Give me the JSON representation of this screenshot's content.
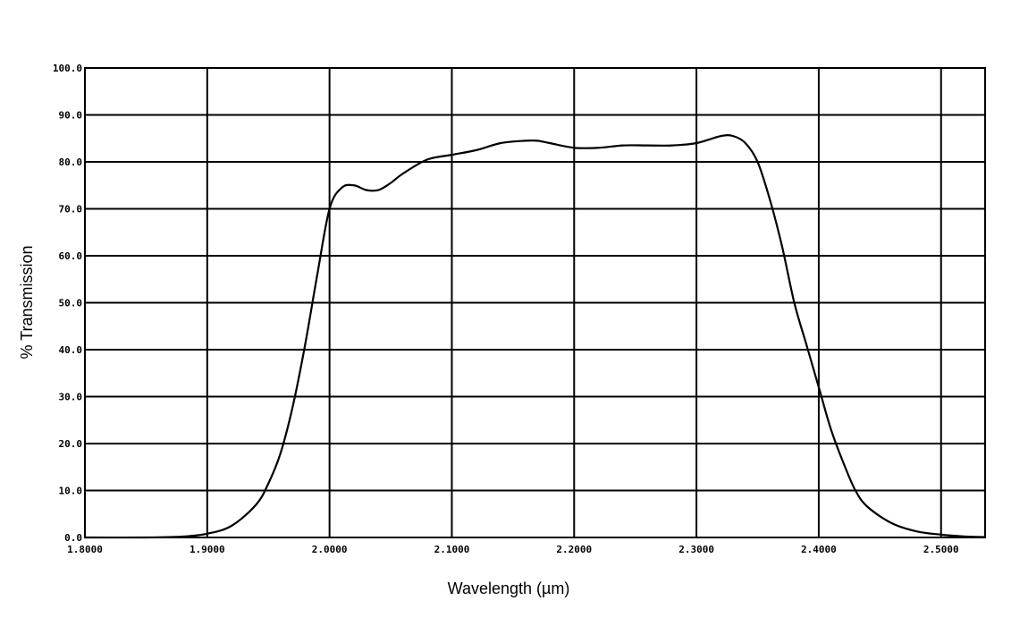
{
  "chart_data": {
    "type": "line",
    "title": "",
    "xlabel": "Wavelength (µm)",
    "ylabel": "% Transmission",
    "xlim": [
      1.8,
      2.536
    ],
    "ylim": [
      0,
      100
    ],
    "grid": true,
    "x_ticks": [
      {
        "value": 1.8,
        "label": "1.8000"
      },
      {
        "value": 1.9,
        "label": "1.9000"
      },
      {
        "value": 2.0,
        "label": "2.0000"
      },
      {
        "value": 2.1,
        "label": "2.1000"
      },
      {
        "value": 2.2,
        "label": "2.2000"
      },
      {
        "value": 2.3,
        "label": "2.3000"
      },
      {
        "value": 2.4,
        "label": "2.4000"
      },
      {
        "value": 2.5,
        "label": "2.5000"
      }
    ],
    "y_ticks": [
      {
        "value": 0,
        "label": "0.0"
      },
      {
        "value": 10,
        "label": "10.0"
      },
      {
        "value": 20,
        "label": "20.0"
      },
      {
        "value": 30,
        "label": "30.0"
      },
      {
        "value": 40,
        "label": "40.0"
      },
      {
        "value": 50,
        "label": "50.0"
      },
      {
        "value": 60,
        "label": "60.0"
      },
      {
        "value": 70,
        "label": "70.0"
      },
      {
        "value": 80,
        "label": "80.0"
      },
      {
        "value": 90,
        "label": "90.0"
      },
      {
        "value": 100,
        "label": "100.0"
      }
    ],
    "series": [
      {
        "x": [
          1.8,
          1.85,
          1.88,
          1.9,
          1.92,
          1.94,
          1.95,
          1.96,
          1.97,
          1.98,
          1.99,
          2.0,
          2.01,
          2.02,
          2.03,
          2.04,
          2.05,
          2.06,
          2.08,
          2.1,
          2.12,
          2.14,
          2.16,
          2.17,
          2.18,
          2.2,
          2.22,
          2.24,
          2.26,
          2.28,
          2.3,
          2.32,
          2.33,
          2.34,
          2.35,
          2.36,
          2.37,
          2.38,
          2.39,
          2.4,
          2.41,
          2.42,
          2.43,
          2.44,
          2.46,
          2.48,
          2.5,
          2.52,
          2.536
        ],
        "values": [
          0.0,
          0.0,
          0.2,
          0.8,
          2.5,
          7.0,
          11.5,
          18.0,
          28.0,
          41.0,
          56.0,
          70.0,
          74.5,
          75.0,
          74.0,
          74.0,
          75.5,
          77.5,
          80.5,
          81.5,
          82.5,
          84.0,
          84.5,
          84.5,
          84.0,
          83.0,
          83.0,
          83.5,
          83.5,
          83.5,
          84.0,
          85.5,
          85.5,
          84.0,
          80.0,
          72.0,
          62.0,
          50.0,
          41.0,
          32.0,
          23.0,
          16.0,
          10.0,
          6.5,
          3.0,
          1.3,
          0.6,
          0.2,
          0.1
        ]
      }
    ]
  }
}
